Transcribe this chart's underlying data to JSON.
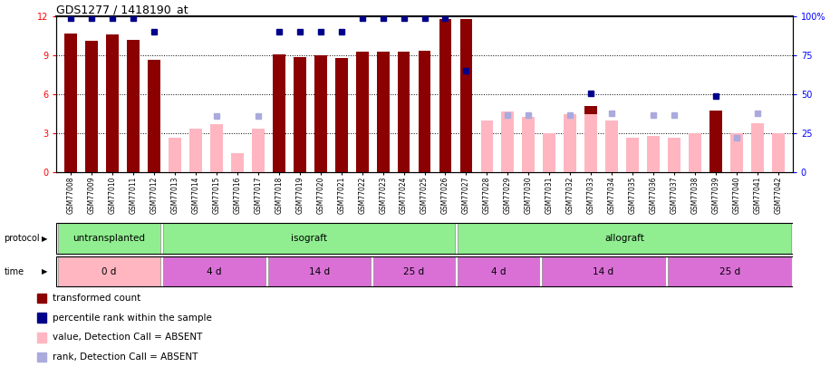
{
  "title": "GDS1277 / 1418190_at",
  "samples": [
    "GSM77008",
    "GSM77009",
    "GSM77010",
    "GSM77011",
    "GSM77012",
    "GSM77013",
    "GSM77014",
    "GSM77015",
    "GSM77016",
    "GSM77017",
    "GSM77018",
    "GSM77019",
    "GSM77020",
    "GSM77021",
    "GSM77022",
    "GSM77023",
    "GSM77024",
    "GSM77025",
    "GSM77026",
    "GSM77027",
    "GSM77028",
    "GSM77029",
    "GSM77030",
    "GSM77031",
    "GSM77032",
    "GSM77033",
    "GSM77034",
    "GSM77035",
    "GSM77036",
    "GSM77037",
    "GSM77038",
    "GSM77039",
    "GSM77040",
    "GSM77041",
    "GSM77042"
  ],
  "transformed_count": [
    10.7,
    10.1,
    10.6,
    10.2,
    8.7,
    null,
    null,
    null,
    null,
    null,
    9.1,
    8.9,
    9.0,
    8.8,
    9.3,
    9.3,
    9.3,
    9.4,
    11.8,
    11.8,
    null,
    null,
    null,
    null,
    null,
    5.1,
    null,
    null,
    null,
    null,
    null,
    4.8,
    null,
    null,
    null
  ],
  "absent_value": [
    null,
    null,
    null,
    null,
    null,
    2.7,
    3.4,
    3.7,
    1.5,
    3.4,
    null,
    null,
    null,
    null,
    null,
    null,
    null,
    null,
    null,
    null,
    4.0,
    4.7,
    4.3,
    3.0,
    4.5,
    4.5,
    4.0,
    2.7,
    2.8,
    2.7,
    3.0,
    null,
    3.0,
    3.8,
    3.0
  ],
  "percentile_rank": [
    99,
    99,
    99,
    99,
    90,
    null,
    null,
    null,
    null,
    null,
    90,
    90,
    90,
    90,
    99,
    99,
    99,
    99,
    99,
    65,
    null,
    null,
    null,
    null,
    null,
    51,
    null,
    null,
    null,
    null,
    null,
    49,
    null,
    null,
    null
  ],
  "absent_rank": [
    null,
    null,
    null,
    null,
    null,
    null,
    null,
    36,
    null,
    36,
    null,
    null,
    null,
    null,
    null,
    null,
    null,
    null,
    null,
    null,
    null,
    37,
    37,
    null,
    37,
    null,
    38,
    null,
    37,
    37,
    null,
    null,
    22,
    38,
    null
  ],
  "bar_color_present": "#8B0000",
  "bar_color_absent": "#FFB6C1",
  "rank_color_present": "#00008B",
  "rank_color_absent": "#AAAADD",
  "protocol_groups": [
    {
      "label": "untransplanted",
      "start": 0,
      "end": 5,
      "color": "#90EE90"
    },
    {
      "label": "isograft",
      "start": 5,
      "end": 19,
      "color": "#90EE90"
    },
    {
      "label": "allograft",
      "start": 19,
      "end": 35,
      "color": "#90EE90"
    }
  ],
  "time_groups": [
    {
      "label": "0 d",
      "start": 0,
      "end": 5,
      "color": "#FFB6C1"
    },
    {
      "label": "4 d",
      "start": 5,
      "end": 10,
      "color": "#DA70D6"
    },
    {
      "label": "14 d",
      "start": 10,
      "end": 15,
      "color": "#DA70D6"
    },
    {
      "label": "25 d",
      "start": 15,
      "end": 19,
      "color": "#DA70D6"
    },
    {
      "label": "4 d",
      "start": 19,
      "end": 23,
      "color": "#DA70D6"
    },
    {
      "label": "14 d",
      "start": 23,
      "end": 29,
      "color": "#DA70D6"
    },
    {
      "label": "25 d",
      "start": 29,
      "end": 35,
      "color": "#DA70D6"
    }
  ],
  "legend_items": [
    {
      "color": "#8B0000",
      "label": "transformed count"
    },
    {
      "color": "#00008B",
      "label": "percentile rank within the sample"
    },
    {
      "color": "#FFB6C1",
      "label": "value, Detection Call = ABSENT"
    },
    {
      "color": "#AAAADD",
      "label": "rank, Detection Call = ABSENT"
    }
  ],
  "ylim_left": [
    0,
    12
  ],
  "ylim_right": [
    0,
    100
  ],
  "yticks_left": [
    0,
    3,
    6,
    9,
    12
  ],
  "yticks_right": [
    0,
    25,
    50,
    75,
    100
  ],
  "ytick_right_labels": [
    "0",
    "25",
    "50",
    "75",
    "100%"
  ]
}
